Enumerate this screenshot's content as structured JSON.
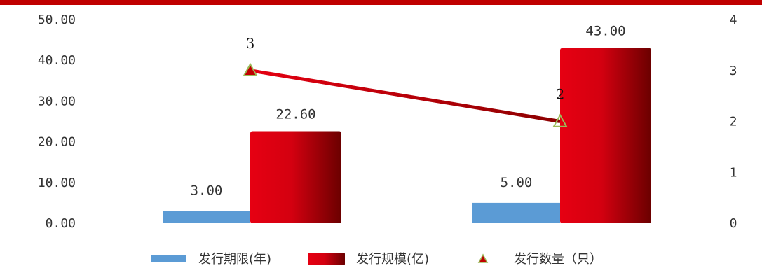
{
  "chart_data": {
    "type": "bar",
    "categories": [
      "",
      ""
    ],
    "series": [
      {
        "name": "发行期限(年)",
        "kind": "bar",
        "axis": "left",
        "values": [
          3.0,
          5.0
        ],
        "labels": [
          "3.00",
          "5.00"
        ],
        "color": "#5b9bd5"
      },
      {
        "name": "发行规模(亿)",
        "kind": "bar",
        "axis": "left",
        "values": [
          22.6,
          43.0
        ],
        "labels": [
          "22.60",
          "43.00"
        ],
        "color": "#e60012"
      },
      {
        "name": "发行数量（只）",
        "kind": "line",
        "axis": "right",
        "values": [
          3,
          2
        ],
        "labels": [
          "3",
          "2"
        ],
        "color": "#c00000",
        "marker": "triangle"
      }
    ],
    "y_left": {
      "ylim": [
        0,
        50
      ],
      "ticks": [
        "0.00",
        "10.00",
        "20.00",
        "30.00",
        "40.00",
        "50.00"
      ]
    },
    "y_right": {
      "ylim": [
        0,
        4
      ],
      "ticks": [
        "0",
        "1",
        "2",
        "3",
        "4"
      ]
    },
    "grid": false,
    "legend": "bottom",
    "colors": {
      "top_band": "#c00000",
      "bar_dark": "#6b0000",
      "marker_edge": "#9bbb59"
    }
  }
}
